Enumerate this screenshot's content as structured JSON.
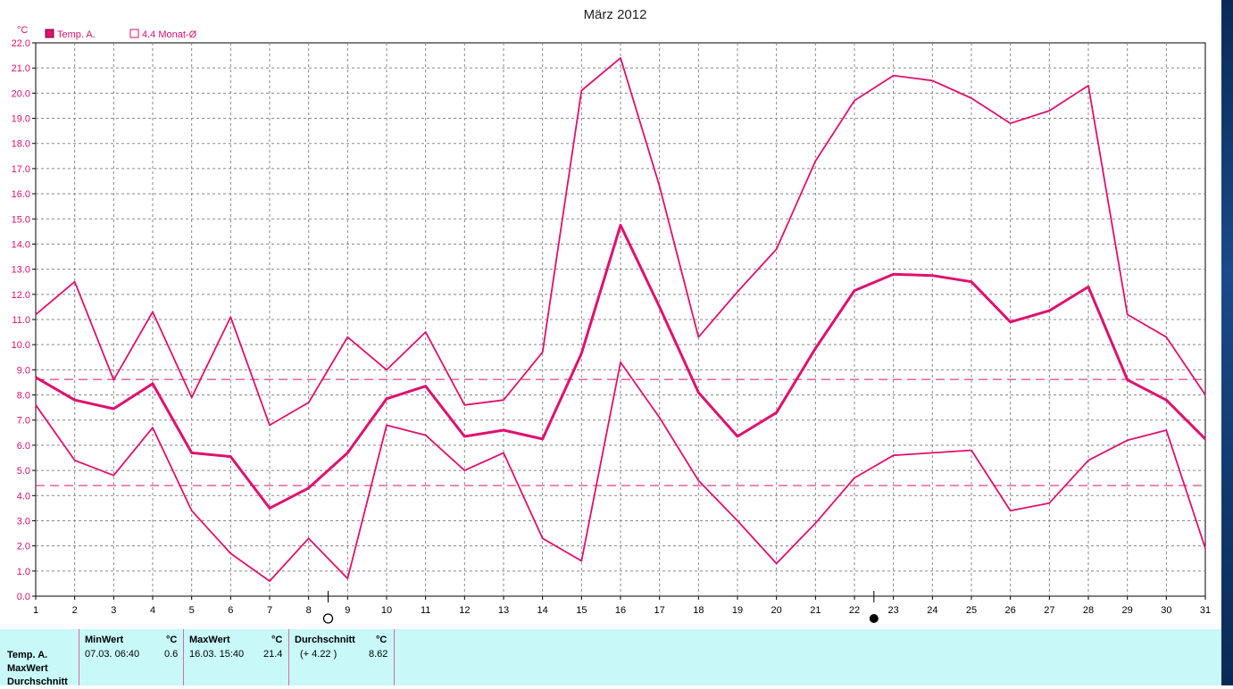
{
  "title": "März 2012",
  "legend": {
    "series_label": "Temp. A.",
    "avg_label": "4.4 Monat-Ø"
  },
  "chart_data": {
    "type": "line",
    "title": "März 2012",
    "ylabel": "°C",
    "xlabel": "",
    "ylim": [
      0,
      22
    ],
    "y_ticks": [
      "0.0",
      "1.0",
      "2.0",
      "3.0",
      "4.0",
      "5.0",
      "6.0",
      "7.0",
      "8.0",
      "9.0",
      "10.0",
      "11.0",
      "12.0",
      "13.0",
      "14.0",
      "15.0",
      "16.0",
      "17.0",
      "18.0",
      "19.0",
      "20.0",
      "21.0",
      "22.0"
    ],
    "x": [
      1,
      2,
      3,
      4,
      5,
      6,
      7,
      8,
      9,
      10,
      11,
      12,
      13,
      14,
      15,
      16,
      17,
      18,
      19,
      20,
      21,
      22,
      23,
      24,
      25,
      26,
      27,
      28,
      29,
      30,
      31
    ],
    "grid": true,
    "legend_position": "top-left",
    "color": "#e0106e",
    "series": [
      {
        "name": "",
        "role": "max",
        "values": [
          11.2,
          12.5,
          8.6,
          11.3,
          7.9,
          11.1,
          6.8,
          7.7,
          10.3,
          9.0,
          10.5,
          7.6,
          7.8,
          9.7,
          20.1,
          21.4,
          16.3,
          10.3,
          12.1,
          13.8,
          17.3,
          19.7,
          20.7,
          20.5,
          19.8,
          18.8,
          19.3,
          20.3,
          11.2,
          10.3,
          8.0
        ]
      },
      {
        "name": "Temp. A.",
        "role": "mean",
        "values": [
          8.7,
          7.8,
          7.45,
          8.45,
          5.7,
          5.55,
          3.5,
          4.3,
          5.7,
          7.85,
          8.35,
          6.35,
          6.6,
          6.25,
          9.65,
          14.75,
          11.5,
          8.1,
          6.35,
          7.3,
          9.85,
          12.15,
          12.8,
          12.75,
          12.5,
          10.9,
          11.35,
          12.3,
          8.6,
          7.8,
          6.25
        ]
      },
      {
        "name": "",
        "role": "min",
        "values": [
          7.6,
          5.4,
          4.8,
          6.7,
          3.4,
          1.7,
          0.6,
          2.3,
          0.7,
          6.8,
          6.4,
          5.0,
          5.7,
          2.3,
          1.4,
          9.3,
          7.1,
          4.6,
          3.0,
          1.3,
          2.9,
          4.7,
          5.6,
          5.7,
          5.8,
          3.4,
          3.7,
          5.4,
          6.2,
          6.6,
          1.9
        ]
      }
    ],
    "reference_lines": [
      {
        "label": "4.4 Monat-Ø",
        "value": 4.4
      },
      {
        "value": 8.62
      }
    ],
    "moon_markers": [
      {
        "day": 8.5,
        "phase": "full"
      },
      {
        "day": 22.5,
        "phase": "new"
      }
    ]
  },
  "stats": {
    "row_labels": [
      "Temp. A.",
      "MaxWert",
      "Durchschnitt"
    ],
    "min": {
      "header": "MinWert",
      "unit": "°C",
      "date": "07.03.  06:40",
      "value": "0.6"
    },
    "max": {
      "header": "MaxWert",
      "unit": "°C",
      "date": "16.03.  15:40",
      "value": "21.4"
    },
    "avg": {
      "header": "Durchschnitt",
      "unit": "°C",
      "delta": "(+ 4.22 )",
      "value": "8.62"
    }
  }
}
